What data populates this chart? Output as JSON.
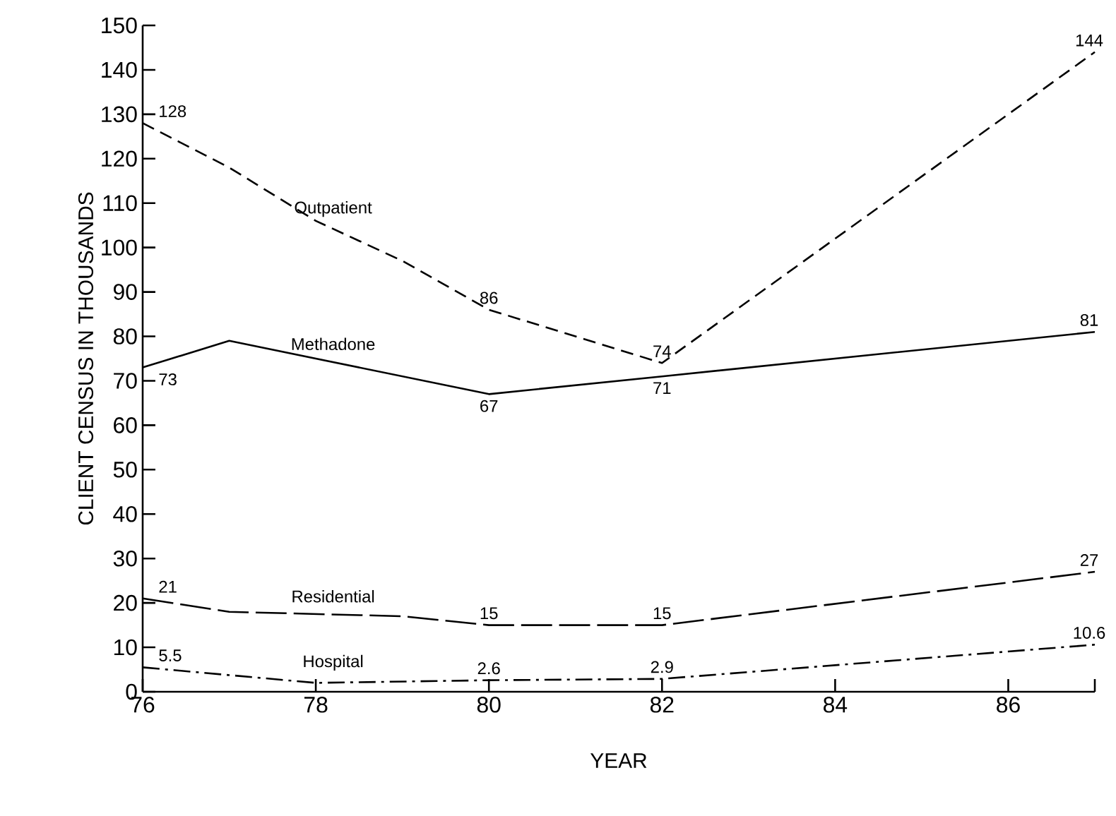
{
  "chart_data": {
    "type": "line",
    "xlabel": "YEAR",
    "ylabel": "CLIENT CENSUS IN THOUSANDS",
    "xlim": [
      76,
      87
    ],
    "xticks": [
      76,
      78,
      80,
      82,
      84,
      86,
      {
        "value": 87,
        "label": null
      }
    ],
    "ylim": [
      0,
      150
    ],
    "yticks": [
      0,
      10,
      20,
      30,
      40,
      50,
      60,
      70,
      80,
      90,
      100,
      110,
      120,
      130,
      140,
      150
    ],
    "grid": false,
    "legend": false,
    "marker": "none",
    "series": [
      {
        "name": "Outpatient",
        "color": "#000000",
        "line_style": "dashed",
        "x": [
          76,
          77,
          78,
          79,
          80,
          82,
          87
        ],
        "values": [
          128,
          118,
          106,
          97,
          86,
          74,
          144
        ],
        "value_labels": [
          "128",
          null,
          null,
          null,
          "86",
          "74",
          "144"
        ]
      },
      {
        "name": "Methadone",
        "color": "#000000",
        "line_style": "solid",
        "x": [
          76,
          77,
          80,
          82,
          87
        ],
        "values": [
          73,
          79,
          67,
          71,
          81
        ],
        "value_labels": [
          "73",
          null,
          "67",
          "71",
          "81"
        ]
      },
      {
        "name": "Residential",
        "color": "#000000",
        "line_style": "longdashed",
        "x": [
          76,
          77,
          79,
          80,
          82,
          87
        ],
        "values": [
          21,
          18,
          17,
          15,
          15,
          27
        ],
        "value_labels": [
          "21",
          null,
          null,
          "15",
          "15",
          "27"
        ]
      },
      {
        "name": "Hospital",
        "color": "#000000",
        "line_style": "dashdot",
        "x": [
          76,
          78,
          80,
          82,
          87
        ],
        "values": [
          5.5,
          2,
          2.6,
          2.9,
          10.6
        ],
        "value_labels": [
          "5.5",
          null,
          "2.6",
          "2.9",
          "10.6"
        ]
      }
    ]
  }
}
